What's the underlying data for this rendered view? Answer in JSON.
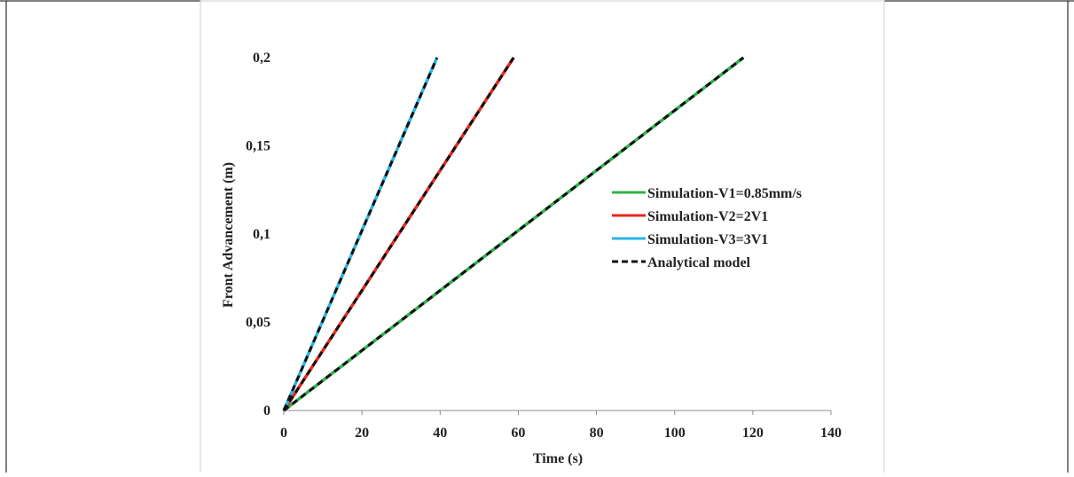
{
  "chart_data": {
    "type": "line",
    "title": "",
    "xlabel": "Time (s)",
    "ylabel": "Front Advancement (m)",
    "xlim": [
      0,
      140
    ],
    "ylim": [
      0,
      0.2
    ],
    "x_ticks": [
      "0",
      "20",
      "40",
      "60",
      "80",
      "100",
      "120",
      "140"
    ],
    "y_ticks": [
      "0",
      "0,05",
      "0,1",
      "0,15",
      "0,2"
    ],
    "x_tick_values": [
      0,
      20,
      40,
      60,
      80,
      100,
      120,
      140
    ],
    "y_tick_values": [
      0,
      0.05,
      0.1,
      0.15,
      0.2
    ],
    "grid": false,
    "legend_position": "right",
    "series": [
      {
        "name": "Simulation-V1=0.85mm/s",
        "color": "#2db34a",
        "style": "solid",
        "x": [
          0,
          117.6
        ],
        "y": [
          0,
          0.2
        ]
      },
      {
        "name": "Simulation-V2=2V1",
        "color": "#e8271f",
        "style": "solid",
        "x": [
          0,
          58.8
        ],
        "y": [
          0,
          0.2
        ]
      },
      {
        "name": "Simulation-V3=3V1",
        "color": "#27b4e6",
        "style": "solid",
        "x": [
          0,
          39.2
        ],
        "y": [
          0,
          0.2
        ]
      },
      {
        "name": "Analytical model",
        "color": "#111111",
        "style": "dashed",
        "segments": [
          {
            "x": [
              0,
              117.6
            ],
            "y": [
              0,
              0.2
            ]
          },
          {
            "x": [
              0,
              58.8
            ],
            "y": [
              0,
              0.2
            ]
          },
          {
            "x": [
              0,
              39.2
            ],
            "y": [
              0,
              0.2
            ]
          }
        ]
      }
    ]
  }
}
